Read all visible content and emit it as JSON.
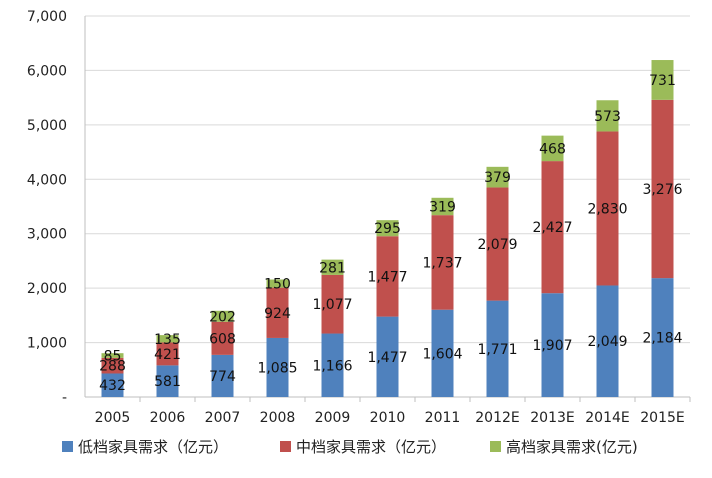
{
  "chart_data": {
    "type": "bar",
    "stacked": true,
    "categories": [
      "2005",
      "2006",
      "2007",
      "2008",
      "2009",
      "2010",
      "2011",
      "2012E",
      "2013E",
      "2014E",
      "2015E"
    ],
    "series": [
      {
        "name": "低档家具需求（亿元）",
        "color": "#4F81BD",
        "values": [
          432,
          581,
          774,
          1085,
          1166,
          1477,
          1604,
          1771,
          1907,
          2049,
          2184
        ],
        "labels": [
          "432",
          "581",
          "774",
          "1,085",
          "1,166",
          "1,477",
          "1,604",
          "1,771",
          "1,907",
          "2,049",
          "2,184"
        ]
      },
      {
        "name": "中档家具需求（亿元）",
        "color": "#C0504D",
        "values": [
          288,
          421,
          608,
          924,
          1077,
          1477,
          1737,
          2079,
          2427,
          2830,
          3276
        ],
        "labels": [
          "288",
          "421",
          "608",
          "924",
          "1,077",
          "1,477",
          "1,737",
          "2,079",
          "2,427",
          "2,830",
          "3,276"
        ]
      },
      {
        "name": "高档家具需求(亿元)",
        "color": "#9BBB59",
        "values": [
          85,
          135,
          202,
          150,
          281,
          295,
          319,
          379,
          468,
          573,
          731
        ],
        "labels": [
          "85",
          "135",
          "202",
          "150",
          "281",
          "295",
          "319",
          "379",
          "468",
          "573",
          "731"
        ]
      }
    ],
    "ylim": [
      0,
      7000
    ],
    "yticks": [
      0,
      1000,
      2000,
      3000,
      4000,
      5000,
      6000,
      7000
    ],
    "ytick_labels": [
      "-",
      "1,000",
      "2,000",
      "3,000",
      "4,000",
      "5,000",
      "6,000",
      "7,000"
    ],
    "grid": true,
    "legend_position": "bottom",
    "title": "",
    "xlabel": "",
    "ylabel": ""
  }
}
